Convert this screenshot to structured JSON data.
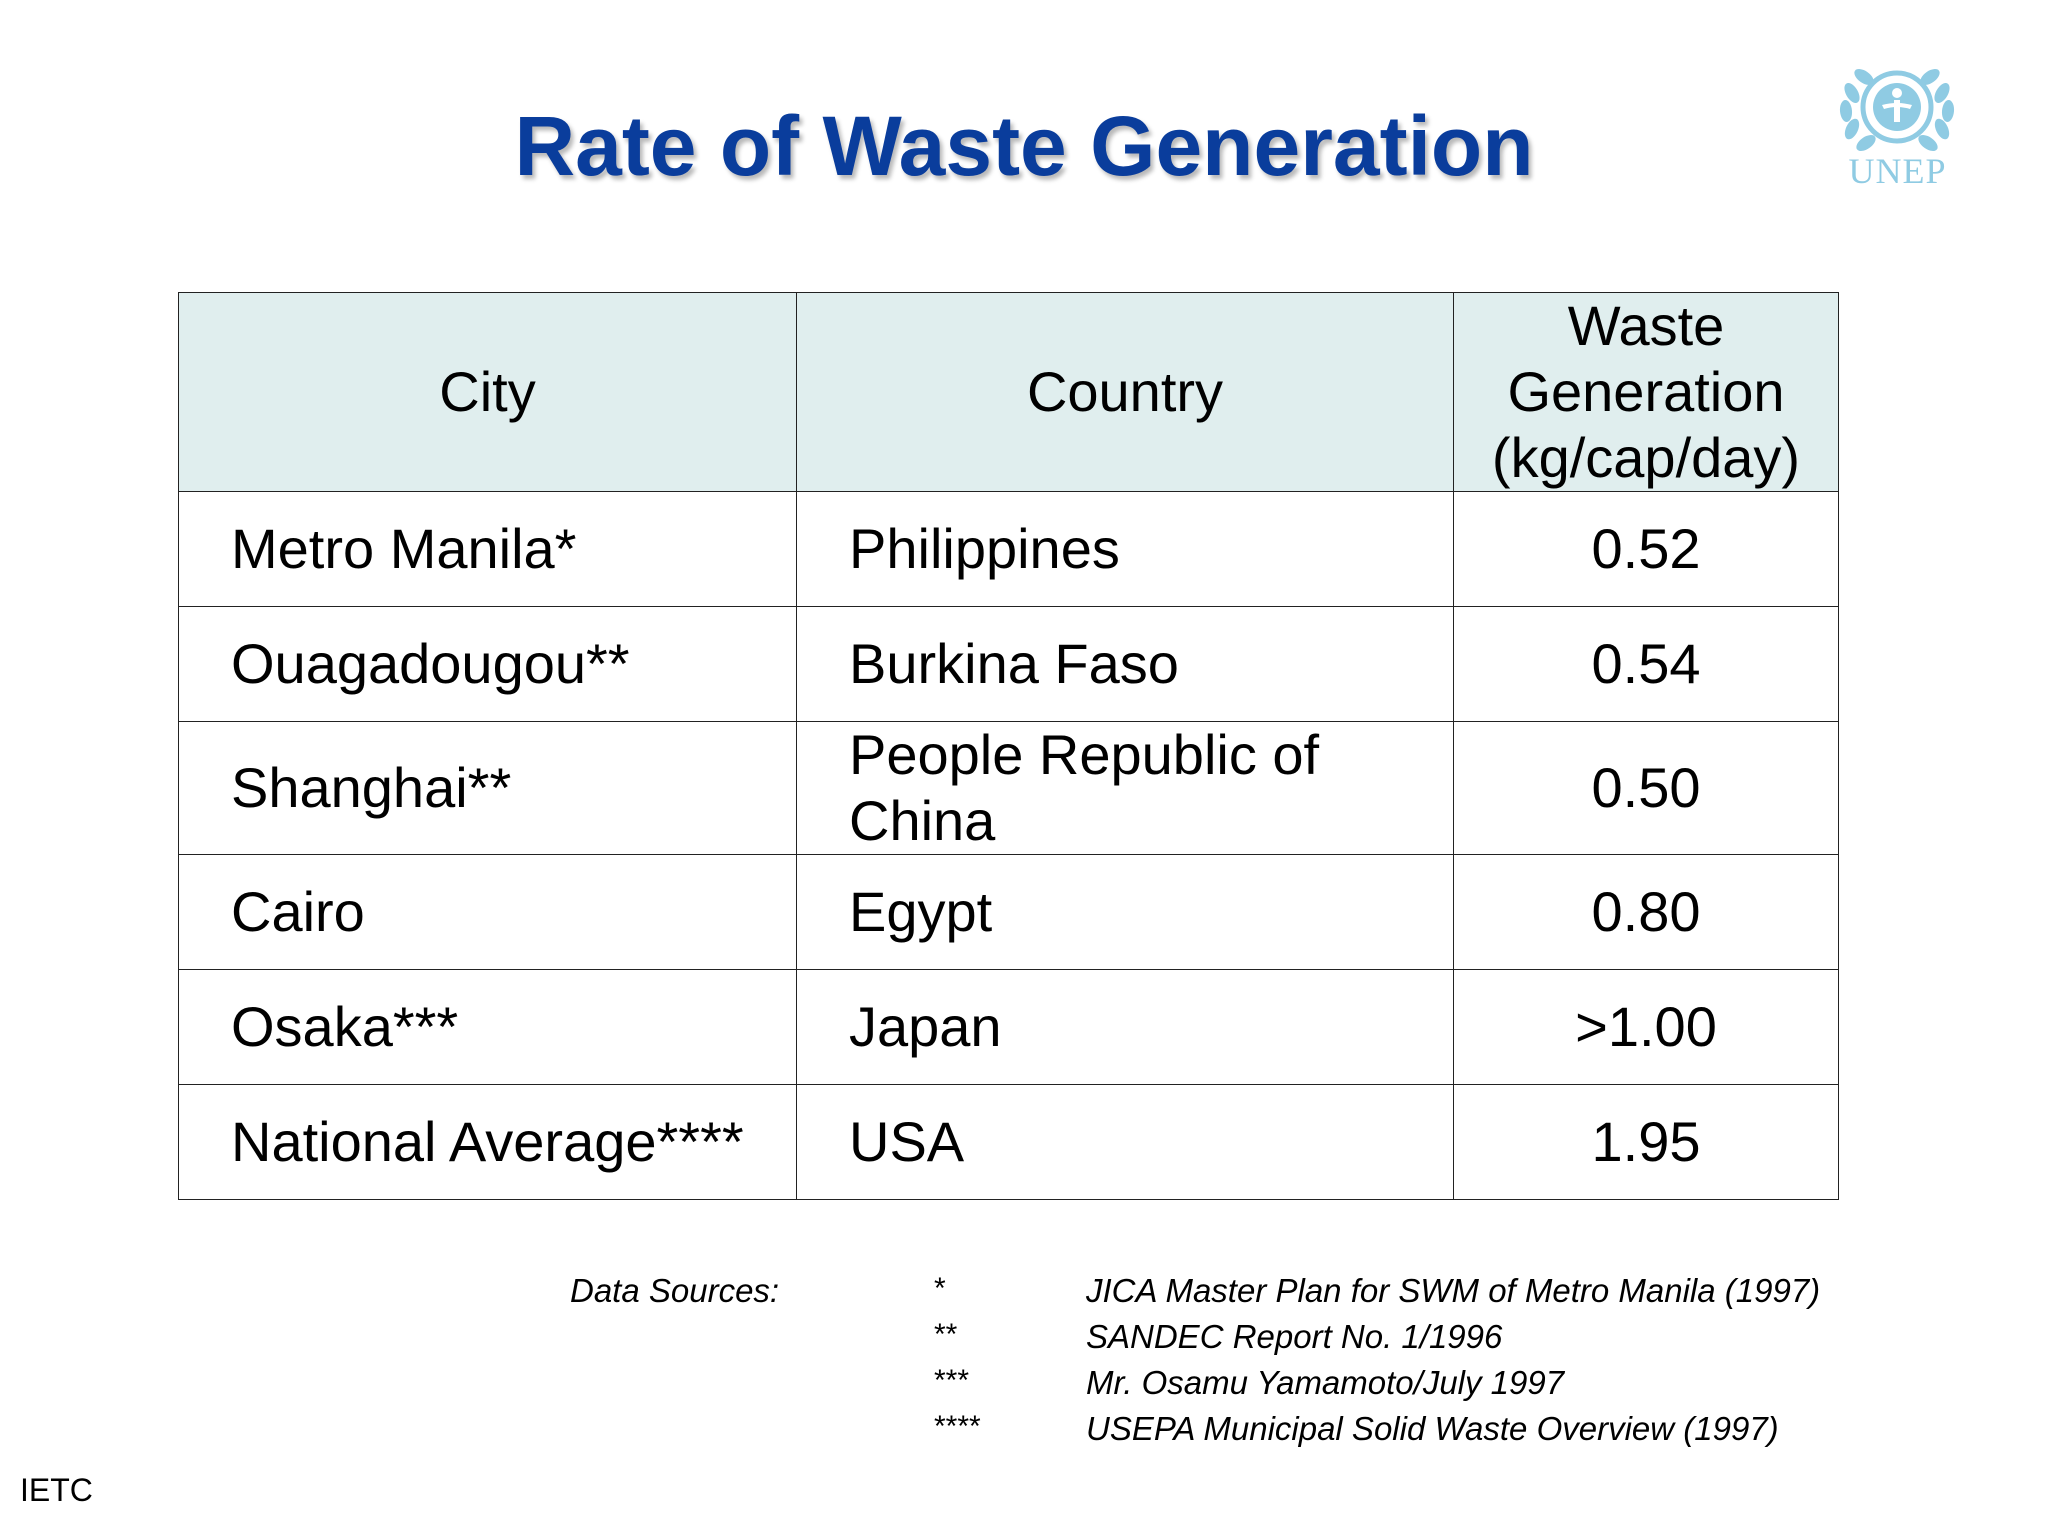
{
  "slide": {
    "title": "Rate of Waste Generation",
    "logo_text": "UNEP",
    "footer": "IETC"
  },
  "table": {
    "headers": {
      "city": "City",
      "country": "Country",
      "waste_line1": "Waste",
      "waste_line2": "Generation",
      "waste_line3": "(kg/cap/day)"
    },
    "rows": [
      {
        "city": "Metro Manila*",
        "country_line1": "Philippines",
        "country_line2": "",
        "value": "0.52"
      },
      {
        "city": "Ouagadougou**",
        "country_line1": "Burkina Faso",
        "country_line2": "",
        "value": "0.54"
      },
      {
        "city": "Shanghai**",
        "country_line1": "People Republic of",
        "country_line2": "China",
        "value": "0.50"
      },
      {
        "city": "Cairo",
        "country_line1": "Egypt",
        "country_line2": "",
        "value": "0.80"
      },
      {
        "city": "Osaka***",
        "country_line1": "Japan",
        "country_line2": "",
        "value": ">1.00"
      },
      {
        "city": "National Average****",
        "country_line1": "USA",
        "country_line2": "",
        "value": "1.95"
      }
    ]
  },
  "sources": {
    "label": "Data Sources:",
    "items": [
      {
        "mark": "*",
        "text": "JICA Master Plan for SWM of Metro Manila (1997)"
      },
      {
        "mark": "**",
        "text": "SANDEC Report No. 1/1996"
      },
      {
        "mark": "***",
        "text": "Mr. Osamu Yamamoto/July 1997"
      },
      {
        "mark": "****",
        "text": "USEPA Municipal Solid Waste Overview (1997)"
      }
    ]
  },
  "colors": {
    "title": "#0a3d9c",
    "header_bg": "#e0eeee",
    "logo": "#8fcbe3"
  }
}
